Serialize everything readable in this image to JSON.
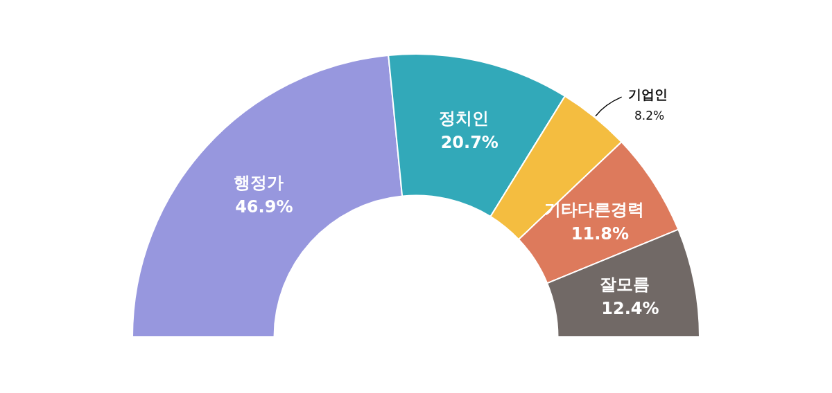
{
  "chart_data": {
    "type": "donut",
    "categories": [
      "행정가",
      "정치인",
      "기업인",
      "기타다른경력",
      "잘모름"
    ],
    "values": [
      46.9,
      20.7,
      8.2,
      11.8,
      12.4
    ],
    "value_labels": [
      "46.9%",
      "20.7%",
      "8.2%",
      "11.8%",
      "12.4%"
    ],
    "colors": [
      "#9797de",
      "#32a9b9",
      "#f4bd40",
      "#dd7a5c",
      "#716966"
    ],
    "legend": false
  }
}
